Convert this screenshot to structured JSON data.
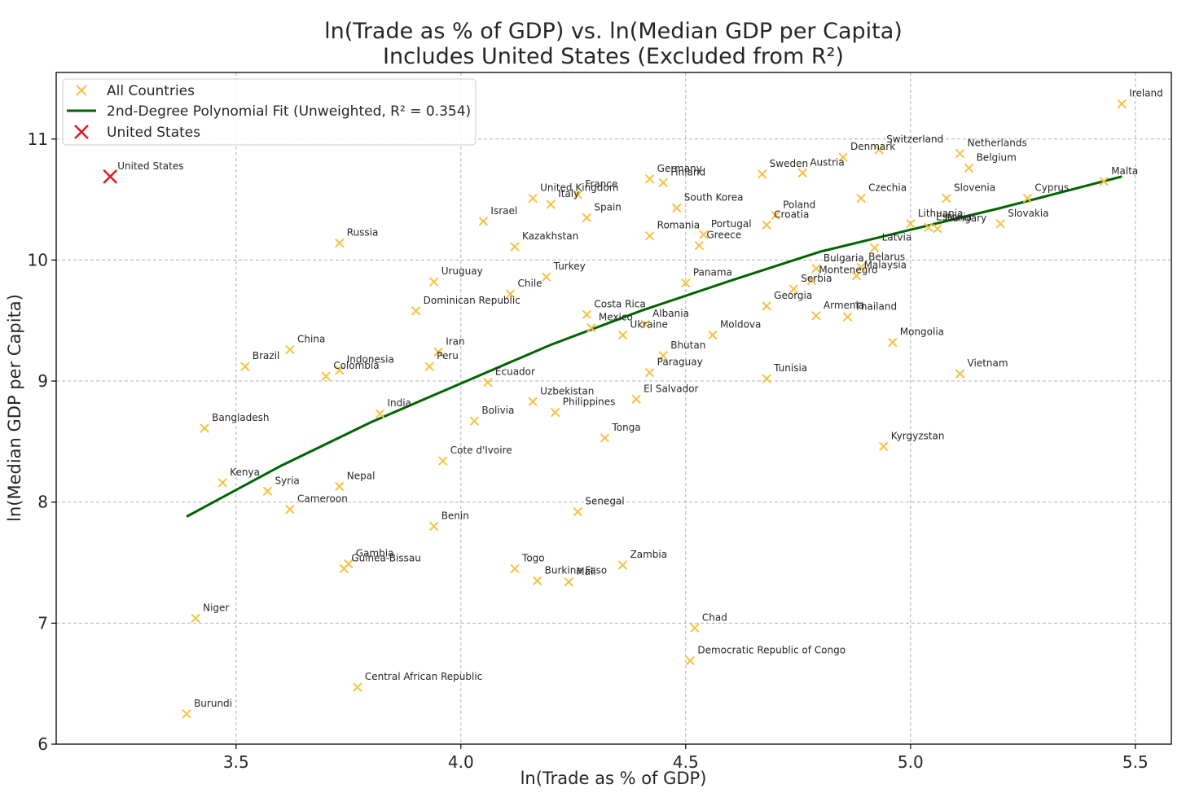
{
  "chart_data": {
    "type": "scatter",
    "title": "ln(Trade as % of GDP) vs. ln(Median GDP per Capita)",
    "subtitle": "Includes United States (Excluded from R²)",
    "xlabel": "ln(Trade as % of GDP)",
    "ylabel": "ln(Median GDP per Capita)",
    "xlim": [
      3.1,
      5.58
    ],
    "ylim": [
      6.0,
      11.55
    ],
    "xticks": [
      3.5,
      4.0,
      4.5,
      5.0,
      5.5
    ],
    "xtick_labels": [
      "3.5",
      "4.0",
      "4.5",
      "5.0",
      "5.5"
    ],
    "yticks": [
      6,
      7,
      8,
      9,
      10,
      11
    ],
    "ytick_labels": [
      "6",
      "7",
      "8",
      "9",
      "10",
      "11"
    ],
    "grid": true,
    "legend_position": "top-left",
    "colors": {
      "points": "#f5c242",
      "fit": "#006400",
      "highlight": "#e31a1c"
    },
    "legend": [
      {
        "label": "All Countries",
        "marker": "x-orange"
      },
      {
        "label": "2nd-Degree Polynomial Fit (Unweighted, R² = 0.354)",
        "marker": "line-green"
      },
      {
        "label": "United States",
        "marker": "x-red"
      }
    ],
    "fit": {
      "name": "2nd-Degree Polynomial Fit (Unweighted, R² = 0.354)",
      "x": [
        3.39,
        3.6,
        3.8,
        4.0,
        4.2,
        4.4,
        4.6,
        4.8,
        5.0,
        5.2,
        5.47
      ],
      "y": [
        7.88,
        8.3,
        8.66,
        8.98,
        9.3,
        9.58,
        9.83,
        10.07,
        10.25,
        10.43,
        10.69
      ]
    },
    "highlight": {
      "name": "United States",
      "label": "United States",
      "x": 3.22,
      "y": 10.69
    },
    "points": [
      {
        "label": "Ireland",
        "x": 5.47,
        "y": 11.29
      },
      {
        "label": "Malta",
        "x": 5.43,
        "y": 10.65
      },
      {
        "label": "Netherlands",
        "x": 5.11,
        "y": 10.88
      },
      {
        "label": "Belgium",
        "x": 5.13,
        "y": 10.76
      },
      {
        "label": "Switzerland",
        "x": 4.93,
        "y": 10.91
      },
      {
        "label": "Denmark",
        "x": 4.85,
        "y": 10.85
      },
      {
        "label": "Austria",
        "x": 4.76,
        "y": 10.72
      },
      {
        "label": "Sweden",
        "x": 4.67,
        "y": 10.71
      },
      {
        "label": "Germany",
        "x": 4.42,
        "y": 10.67
      },
      {
        "label": "Finland",
        "x": 4.45,
        "y": 10.64
      },
      {
        "label": "France",
        "x": 4.26,
        "y": 10.54
      },
      {
        "label": "United Kingdom",
        "x": 4.16,
        "y": 10.51
      },
      {
        "label": "Italy",
        "x": 4.2,
        "y": 10.46
      },
      {
        "label": "Spain",
        "x": 4.28,
        "y": 10.35
      },
      {
        "label": "South Korea",
        "x": 4.48,
        "y": 10.43
      },
      {
        "label": "Israel",
        "x": 4.05,
        "y": 10.32
      },
      {
        "label": "Kazakhstan",
        "x": 4.12,
        "y": 10.11
      },
      {
        "label": "Romania",
        "x": 4.42,
        "y": 10.2
      },
      {
        "label": "Portugal",
        "x": 4.54,
        "y": 10.21
      },
      {
        "label": "Greece",
        "x": 4.53,
        "y": 10.12
      },
      {
        "label": "Poland",
        "x": 4.7,
        "y": 10.37
      },
      {
        "label": "Croatia",
        "x": 4.68,
        "y": 10.29
      },
      {
        "label": "Czechia",
        "x": 4.89,
        "y": 10.51
      },
      {
        "label": "Slovenia",
        "x": 5.08,
        "y": 10.51
      },
      {
        "label": "Cyprus",
        "x": 5.26,
        "y": 10.51
      },
      {
        "label": "Slovakia",
        "x": 5.2,
        "y": 10.3
      },
      {
        "label": "Lithuania",
        "x": 5.0,
        "y": 10.3
      },
      {
        "label": "Estonia",
        "x": 5.04,
        "y": 10.27
      },
      {
        "label": "Hungary",
        "x": 5.06,
        "y": 10.26
      },
      {
        "label": "Latvia",
        "x": 4.92,
        "y": 10.1
      },
      {
        "label": "Russia",
        "x": 3.73,
        "y": 10.14
      },
      {
        "label": "Uruguay",
        "x": 3.94,
        "y": 9.82
      },
      {
        "label": "Turkey",
        "x": 4.19,
        "y": 9.86
      },
      {
        "label": "Chile",
        "x": 4.11,
        "y": 9.72
      },
      {
        "label": "Panama",
        "x": 4.5,
        "y": 9.81
      },
      {
        "label": "Bulgaria",
        "x": 4.79,
        "y": 9.93
      },
      {
        "label": "Belarus",
        "x": 4.89,
        "y": 9.94
      },
      {
        "label": "Malaysia",
        "x": 4.88,
        "y": 9.87
      },
      {
        "label": "Montenegro",
        "x": 4.78,
        "y": 9.83
      },
      {
        "label": "Serbia",
        "x": 4.74,
        "y": 9.76
      },
      {
        "label": "Georgia",
        "x": 4.68,
        "y": 9.62
      },
      {
        "label": "Armenia",
        "x": 4.79,
        "y": 9.54
      },
      {
        "label": "Thailand",
        "x": 4.86,
        "y": 9.53
      },
      {
        "label": "Dominican Republic",
        "x": 3.9,
        "y": 9.58
      },
      {
        "label": "Costa Rica",
        "x": 4.28,
        "y": 9.55
      },
      {
        "label": "Mexico",
        "x": 4.29,
        "y": 9.44
      },
      {
        "label": "Albania",
        "x": 4.41,
        "y": 9.47
      },
      {
        "label": "Ukraine",
        "x": 4.36,
        "y": 9.38
      },
      {
        "label": "Moldova",
        "x": 4.56,
        "y": 9.38
      },
      {
        "label": "Bhutan",
        "x": 4.45,
        "y": 9.21
      },
      {
        "label": "Mongolia",
        "x": 4.96,
        "y": 9.32
      },
      {
        "label": "Vietnam",
        "x": 5.11,
        "y": 9.06
      },
      {
        "label": "China",
        "x": 3.62,
        "y": 9.26
      },
      {
        "label": "Iran",
        "x": 3.95,
        "y": 9.24
      },
      {
        "label": "Brazil",
        "x": 3.52,
        "y": 9.12
      },
      {
        "label": "Peru",
        "x": 3.93,
        "y": 9.12
      },
      {
        "label": "Indonesia",
        "x": 3.73,
        "y": 9.09
      },
      {
        "label": "Colombia",
        "x": 3.7,
        "y": 9.04
      },
      {
        "label": "Paraguay",
        "x": 4.42,
        "y": 9.07
      },
      {
        "label": "Tunisia",
        "x": 4.68,
        "y": 9.02
      },
      {
        "label": "Ecuador",
        "x": 4.06,
        "y": 8.99
      },
      {
        "label": "El Salvador",
        "x": 4.39,
        "y": 8.85
      },
      {
        "label": "Uzbekistan",
        "x": 4.16,
        "y": 8.83
      },
      {
        "label": "Philippines",
        "x": 4.21,
        "y": 8.74
      },
      {
        "label": "India",
        "x": 3.82,
        "y": 8.73
      },
      {
        "label": "Bolivia",
        "x": 4.03,
        "y": 8.67
      },
      {
        "label": "Bangladesh",
        "x": 3.43,
        "y": 8.61
      },
      {
        "label": "Tonga",
        "x": 4.32,
        "y": 8.53
      },
      {
        "label": "Kyrgyzstan",
        "x": 4.94,
        "y": 8.46
      },
      {
        "label": "Cote d'Ivoire",
        "x": 3.96,
        "y": 8.34
      },
      {
        "label": "Kenya",
        "x": 3.47,
        "y": 8.16
      },
      {
        "label": "Syria",
        "x": 3.57,
        "y": 8.09
      },
      {
        "label": "Nepal",
        "x": 3.73,
        "y": 8.13
      },
      {
        "label": "Cameroon",
        "x": 3.62,
        "y": 7.94
      },
      {
        "label": "Senegal",
        "x": 4.26,
        "y": 7.92
      },
      {
        "label": "Benin",
        "x": 3.94,
        "y": 7.8
      },
      {
        "label": "Zambia",
        "x": 4.36,
        "y": 7.48
      },
      {
        "label": "Gambia",
        "x": 3.75,
        "y": 7.49
      },
      {
        "label": "Guinea-Bissau",
        "x": 3.74,
        "y": 7.45
      },
      {
        "label": "Togo",
        "x": 4.12,
        "y": 7.45
      },
      {
        "label": "Burkina Faso",
        "x": 4.17,
        "y": 7.35
      },
      {
        "label": "Mali",
        "x": 4.24,
        "y": 7.34
      },
      {
        "label": "Niger",
        "x": 3.41,
        "y": 7.04
      },
      {
        "label": "Chad",
        "x": 4.52,
        "y": 6.96
      },
      {
        "label": "Democratic Republic of Congo",
        "x": 4.51,
        "y": 6.69
      },
      {
        "label": "Central African Republic",
        "x": 3.77,
        "y": 6.47
      },
      {
        "label": "Burundi",
        "x": 3.39,
        "y": 6.25
      }
    ]
  }
}
